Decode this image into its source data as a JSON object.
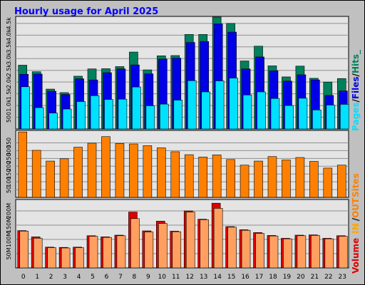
{
  "title": "Hourly usage for April 2025",
  "colors": {
    "frame_bg": "#c0c0c0",
    "plot_bg": "#e4e4e4",
    "grid": "#909090",
    "title": "#0000ff",
    "hits": "#00805c",
    "files": "#0000e6",
    "pages": "#00e0ff",
    "sites": "#ff8000",
    "kbin": "#dd0000",
    "kbout": "#ffa060",
    "legend_in": "#ffa600",
    "legend_sep": "#000000"
  },
  "chart_data": [
    {
      "type": "bar",
      "title": "Hourly usage for April 2025",
      "categories": [
        "0",
        "1",
        "2",
        "3",
        "4",
        "5",
        "6",
        "7",
        "8",
        "9",
        "10",
        "11",
        "12",
        "13",
        "14",
        "15",
        "16",
        "17",
        "18",
        "19",
        "20",
        "21",
        "22",
        "23"
      ],
      "yticks": [
        "500",
        "1.0k",
        "1.5k",
        "2.0k",
        "2.5k",
        "3.0k",
        "3.5k",
        "4.0k",
        "4.5k"
      ],
      "ylim": [
        0,
        4800
      ],
      "legend": [
        "Pages",
        "Files",
        "Hits"
      ],
      "legend_separator": "/",
      "legend_trailer": "_",
      "series": [
        {
          "name": "Hits",
          "values": [
            2720,
            2440,
            1700,
            1550,
            2250,
            2560,
            2570,
            2660,
            3280,
            2520,
            3120,
            3130,
            4030,
            4030,
            4770,
            4500,
            2900,
            3530,
            2690,
            2220,
            2680,
            2160,
            2000,
            2150
          ]
        },
        {
          "name": "Files",
          "values": [
            2330,
            2340,
            1610,
            1470,
            2140,
            2090,
            2400,
            2560,
            2730,
            2350,
            2980,
            3020,
            3690,
            3730,
            4480,
            4130,
            2560,
            3070,
            2480,
            2040,
            2310,
            2090,
            1430,
            1620
          ]
        },
        {
          "name": "Pages",
          "values": [
            1800,
            910,
            680,
            850,
            1170,
            1420,
            1260,
            1270,
            1790,
            990,
            1060,
            1230,
            2060,
            1580,
            2050,
            2170,
            1450,
            1580,
            1300,
            1000,
            1310,
            810,
            1020,
            1050
          ]
        }
      ]
    },
    {
      "type": "bar",
      "categories": [
        "0",
        "1",
        "2",
        "3",
        "4",
        "5",
        "6",
        "7",
        "8",
        "9",
        "10",
        "11",
        "12",
        "13",
        "14",
        "15",
        "16",
        "17",
        "18",
        "19",
        "20",
        "21",
        "22",
        "23"
      ],
      "yticks": [
        "50",
        "100",
        "150",
        "200",
        "250",
        "300",
        "350"
      ],
      "ylim": [
        0,
        430
      ],
      "legend": [
        "Sites"
      ],
      "series": [
        {
          "name": "Sites",
          "values": [
            420,
            302,
            233,
            248,
            322,
            348,
            390,
            346,
            343,
            332,
            318,
            293,
            274,
            259,
            273,
            243,
            207,
            233,
            262,
            240,
            256,
            231,
            188,
            207
          ]
        }
      ]
    },
    {
      "type": "bar",
      "categories": [
        "0",
        "1",
        "2",
        "3",
        "4",
        "5",
        "6",
        "7",
        "8",
        "9",
        "10",
        "11",
        "12",
        "13",
        "14",
        "15",
        "16",
        "17",
        "18",
        "19",
        "20",
        "21",
        "22",
        "23"
      ],
      "yticks": [
        "50M",
        "100M",
        "150M",
        "200M"
      ],
      "ylim": [
        0,
        240
      ],
      "legend": [
        "Volume",
        "IN",
        "OUT"
      ],
      "legend_separator": "/",
      "series": [
        {
          "name": "Volume IN",
          "values": [
            131,
            109,
            73,
            72,
            73,
            113,
            109,
            115,
            196,
            130,
            164,
            129,
            200,
            171,
            227,
            145,
            134,
            124,
            114,
            104,
            115,
            116,
            104,
            113
          ]
        },
        {
          "name": "Volume OUT",
          "values": [
            129,
            104,
            71,
            70,
            71,
            111,
            107,
            113,
            173,
            126,
            156,
            127,
            196,
            169,
            209,
            143,
            132,
            121,
            112,
            102,
            113,
            114,
            102,
            111
          ]
        }
      ]
    }
  ]
}
